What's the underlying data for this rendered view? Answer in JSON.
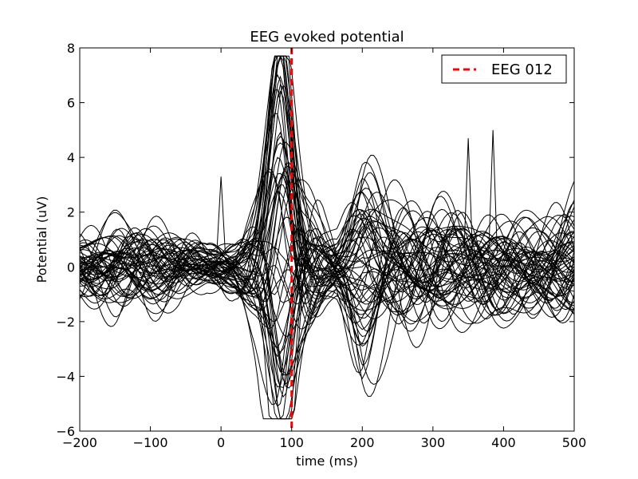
{
  "chart_data": {
    "type": "line",
    "title": "EEG evoked potential",
    "xlabel": "time (ms)",
    "ylabel": "Potential (uV)",
    "xlim": [
      -200,
      500
    ],
    "ylim": [
      -6,
      8
    ],
    "x_ticks": [
      -200,
      -100,
      0,
      100,
      200,
      300,
      400,
      500
    ],
    "x_tick_labels": [
      "−200",
      "−100",
      "0",
      "100",
      "200",
      "300",
      "400",
      "500"
    ],
    "y_ticks": [
      -6,
      -4,
      -2,
      0,
      2,
      4,
      6,
      8
    ],
    "y_tick_labels": [
      "−6",
      "−4",
      "−2",
      "0",
      "2",
      "4",
      "6",
      "8"
    ],
    "grid": false,
    "legend": {
      "placement": "top-right",
      "entries": [
        {
          "label": "EEG 012",
          "color": "#ff0000",
          "style": "dashed"
        }
      ]
    },
    "reference_line": {
      "x": 100,
      "color": "#ff0000",
      "style": "dashed",
      "label": "EEG 012"
    },
    "trace_color": "#000000",
    "series_template": {
      "x_step_ms": 4,
      "envelope_points": [
        {
          "t": -200,
          "amp": 1.3
        },
        {
          "t": -150,
          "amp": 1.7
        },
        {
          "t": -100,
          "amp": 1.6
        },
        {
          "t": -60,
          "amp": 1.4
        },
        {
          "t": -20,
          "amp": 0.9
        },
        {
          "t": 20,
          "amp": 1.3
        },
        {
          "t": 50,
          "amp": 2.6
        },
        {
          "t": 70,
          "amp": 4.2
        },
        {
          "t": 85,
          "amp": 5.6
        },
        {
          "t": 100,
          "amp": 4.8
        },
        {
          "t": 120,
          "amp": 3.4
        },
        {
          "t": 150,
          "amp": 1.5
        },
        {
          "t": 165,
          "amp": 1.0
        },
        {
          "t": 200,
          "amp": 2.7
        },
        {
          "t": 250,
          "amp": 2.6
        },
        {
          "t": 300,
          "amp": 2.8
        },
        {
          "t": 350,
          "amp": 2.4
        },
        {
          "t": 400,
          "amp": 2.3
        },
        {
          "t": 450,
          "amp": 2.0
        },
        {
          "t": 500,
          "amp": 2.5
        }
      ],
      "evoked_wave_peak_ms": 85,
      "evoked_wave_second_peak_ms": 200,
      "trace_count": 60,
      "spike_events": [
        {
          "t": 0,
          "value": 3.3
        },
        {
          "t": 350,
          "value": 4.7
        },
        {
          "t": 385,
          "value": 5.0
        }
      ]
    }
  }
}
